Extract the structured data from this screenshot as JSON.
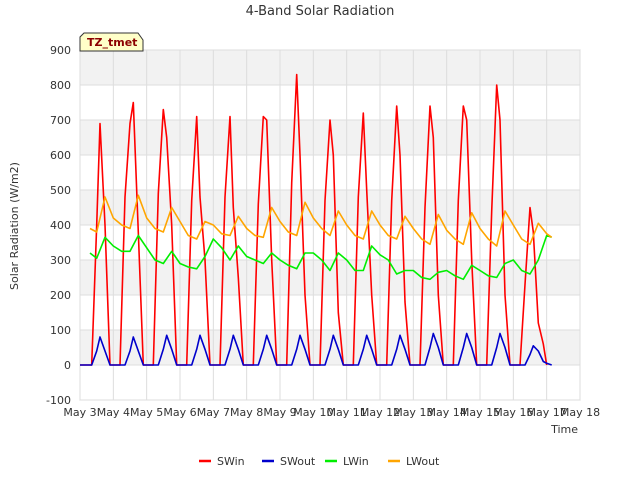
{
  "chart_data": {
    "type": "line",
    "title": "4-Band Solar Radiation",
    "xlabel": "Time",
    "ylabel": "Solar Radiation (W/m2)",
    "badge": "TZ_tmet",
    "ylim": [
      -100,
      900
    ],
    "yticks": [
      -100,
      0,
      100,
      200,
      300,
      400,
      500,
      600,
      700,
      800,
      900
    ],
    "xlim": [
      3,
      18
    ],
    "xticks": [
      {
        "day": 3,
        "label": "May 3"
      },
      {
        "day": 4,
        "label": "May 4"
      },
      {
        "day": 5,
        "label": "May 5"
      },
      {
        "day": 6,
        "label": "May 6"
      },
      {
        "day": 7,
        "label": "May 7"
      },
      {
        "day": 8,
        "label": "May 8"
      },
      {
        "day": 9,
        "label": "May 9"
      },
      {
        "day": 10,
        "label": "May 10"
      },
      {
        "day": 11,
        "label": "May 11"
      },
      {
        "day": 12,
        "label": "May 12"
      },
      {
        "day": 13,
        "label": "May 13"
      },
      {
        "day": 14,
        "label": "May 14"
      },
      {
        "day": 15,
        "label": "May 15"
      },
      {
        "day": 16,
        "label": "May 16"
      },
      {
        "day": 17,
        "label": "May 17"
      },
      {
        "day": 18,
        "label": "May 18"
      }
    ],
    "grid": true,
    "legend_position": "bottom",
    "series": [
      {
        "name": "SWin",
        "color": "#ff0000",
        "x": [
          3.0,
          3.35,
          3.5,
          3.6,
          3.75,
          3.9,
          4.05,
          4.2,
          4.35,
          4.5,
          4.6,
          4.75,
          4.9,
          5.05,
          5.2,
          5.35,
          5.5,
          5.6,
          5.75,
          5.9,
          6.05,
          6.2,
          6.35,
          6.5,
          6.6,
          6.75,
          6.9,
          7.05,
          7.2,
          7.35,
          7.5,
          7.6,
          7.75,
          7.9,
          8.05,
          8.2,
          8.35,
          8.5,
          8.6,
          8.75,
          8.9,
          9.05,
          9.2,
          9.35,
          9.5,
          9.6,
          9.75,
          9.9,
          10.05,
          10.2,
          10.35,
          10.5,
          10.6,
          10.75,
          10.9,
          11.05,
          11.2,
          11.35,
          11.5,
          11.6,
          11.75,
          11.9,
          12.05,
          12.2,
          12.35,
          12.5,
          12.6,
          12.75,
          12.9,
          13.05,
          13.2,
          13.35,
          13.5,
          13.6,
          13.75,
          13.9,
          14.05,
          14.2,
          14.35,
          14.5,
          14.6,
          14.75,
          14.9,
          15.05,
          15.2,
          15.35,
          15.5,
          15.6,
          15.75,
          15.9,
          16.05,
          16.2,
          16.35,
          16.5,
          16.6,
          16.75,
          16.9,
          17.0
        ],
        "y": [
          0,
          0,
          400,
          690,
          400,
          0,
          0,
          0,
          480,
          690,
          750,
          380,
          0,
          0,
          0,
          490,
          730,
          650,
          400,
          0,
          0,
          0,
          470,
          710,
          480,
          300,
          0,
          0,
          0,
          480,
          710,
          450,
          250,
          0,
          0,
          0,
          460,
          710,
          700,
          300,
          0,
          0,
          0,
          520,
          830,
          600,
          200,
          0,
          0,
          0,
          470,
          700,
          600,
          150,
          0,
          0,
          0,
          480,
          720,
          500,
          200,
          0,
          0,
          0,
          470,
          740,
          600,
          180,
          0,
          0,
          0,
          450,
          740,
          650,
          200,
          0,
          0,
          0,
          470,
          740,
          700,
          300,
          0,
          0,
          0,
          440,
          800,
          700,
          200,
          0,
          0,
          0,
          230,
          450,
          380,
          120,
          60,
          0
        ]
      },
      {
        "name": "SWout",
        "color": "#0000cc",
        "x": [
          3.0,
          3.35,
          3.5,
          3.6,
          3.75,
          3.9,
          4.05,
          4.35,
          4.5,
          4.6,
          4.75,
          4.9,
          5.05,
          5.35,
          5.5,
          5.6,
          5.75,
          5.9,
          6.05,
          6.35,
          6.5,
          6.6,
          6.75,
          6.9,
          7.05,
          7.35,
          7.5,
          7.6,
          7.75,
          7.9,
          8.05,
          8.35,
          8.5,
          8.6,
          8.75,
          8.9,
          9.05,
          9.35,
          9.5,
          9.6,
          9.75,
          9.9,
          10.05,
          10.35,
          10.5,
          10.6,
          10.75,
          10.9,
          11.05,
          11.35,
          11.5,
          11.6,
          11.75,
          11.9,
          12.05,
          12.35,
          12.5,
          12.6,
          12.75,
          12.9,
          13.05,
          13.35,
          13.5,
          13.6,
          13.75,
          13.9,
          14.05,
          14.35,
          14.5,
          14.6,
          14.75,
          14.9,
          15.05,
          15.35,
          15.5,
          15.6,
          15.75,
          15.9,
          16.05,
          16.35,
          16.5,
          16.6,
          16.75,
          16.9,
          17.0,
          17.15
        ],
        "y": [
          0,
          0,
          40,
          80,
          40,
          0,
          0,
          0,
          40,
          80,
          40,
          0,
          0,
          0,
          45,
          85,
          45,
          0,
          0,
          0,
          45,
          85,
          45,
          0,
          0,
          0,
          45,
          85,
          45,
          0,
          0,
          0,
          45,
          85,
          45,
          0,
          0,
          0,
          45,
          85,
          45,
          0,
          0,
          0,
          45,
          85,
          45,
          0,
          0,
          0,
          45,
          85,
          45,
          0,
          0,
          0,
          45,
          85,
          45,
          0,
          0,
          0,
          50,
          90,
          50,
          0,
          0,
          0,
          50,
          90,
          50,
          0,
          0,
          0,
          50,
          90,
          50,
          0,
          0,
          0,
          30,
          55,
          40,
          10,
          5,
          0
        ]
      },
      {
        "name": "LWin",
        "color": "#00ee00",
        "x": [
          3.3,
          3.5,
          3.75,
          4.0,
          4.25,
          4.5,
          4.75,
          5.0,
          5.25,
          5.5,
          5.75,
          6.0,
          6.25,
          6.5,
          6.75,
          7.0,
          7.25,
          7.5,
          7.75,
          8.0,
          8.25,
          8.5,
          8.75,
          9.0,
          9.25,
          9.5,
          9.75,
          10.0,
          10.25,
          10.5,
          10.75,
          11.0,
          11.25,
          11.5,
          11.75,
          12.0,
          12.25,
          12.5,
          12.75,
          13.0,
          13.25,
          13.5,
          13.75,
          14.0,
          14.25,
          14.5,
          14.75,
          15.0,
          15.25,
          15.5,
          15.75,
          16.0,
          16.25,
          16.5,
          16.75,
          17.0,
          17.15
        ],
        "y": [
          320,
          305,
          365,
          340,
          325,
          325,
          370,
          335,
          300,
          290,
          325,
          290,
          280,
          275,
          310,
          360,
          335,
          300,
          340,
          310,
          300,
          290,
          320,
          300,
          285,
          275,
          320,
          320,
          300,
          270,
          320,
          300,
          270,
          270,
          340,
          315,
          300,
          260,
          270,
          270,
          250,
          245,
          265,
          270,
          255,
          245,
          285,
          270,
          255,
          250,
          290,
          300,
          270,
          260,
          300,
          370,
          365
        ]
      },
      {
        "name": "LWout",
        "color": "#ffa500",
        "x": [
          3.3,
          3.5,
          3.75,
          4.0,
          4.25,
          4.5,
          4.75,
          5.0,
          5.25,
          5.5,
          5.75,
          6.0,
          6.25,
          6.5,
          6.75,
          7.0,
          7.25,
          7.5,
          7.75,
          8.0,
          8.25,
          8.5,
          8.75,
          9.0,
          9.25,
          9.5,
          9.75,
          10.0,
          10.25,
          10.5,
          10.75,
          11.0,
          11.25,
          11.5,
          11.75,
          12.0,
          12.25,
          12.5,
          12.75,
          13.0,
          13.25,
          13.5,
          13.75,
          14.0,
          14.25,
          14.5,
          14.75,
          15.0,
          15.25,
          15.5,
          15.75,
          16.0,
          16.25,
          16.5,
          16.75,
          17.0,
          17.15
        ],
        "y": [
          390,
          380,
          480,
          420,
          400,
          390,
          485,
          420,
          390,
          380,
          450,
          410,
          370,
          360,
          410,
          400,
          375,
          370,
          425,
          390,
          370,
          365,
          450,
          410,
          380,
          370,
          465,
          420,
          390,
          370,
          440,
          400,
          370,
          360,
          440,
          400,
          370,
          360,
          425,
          390,
          360,
          345,
          430,
          385,
          360,
          345,
          435,
          390,
          360,
          340,
          440,
          400,
          360,
          345,
          405,
          375,
          365
        ]
      }
    ]
  }
}
